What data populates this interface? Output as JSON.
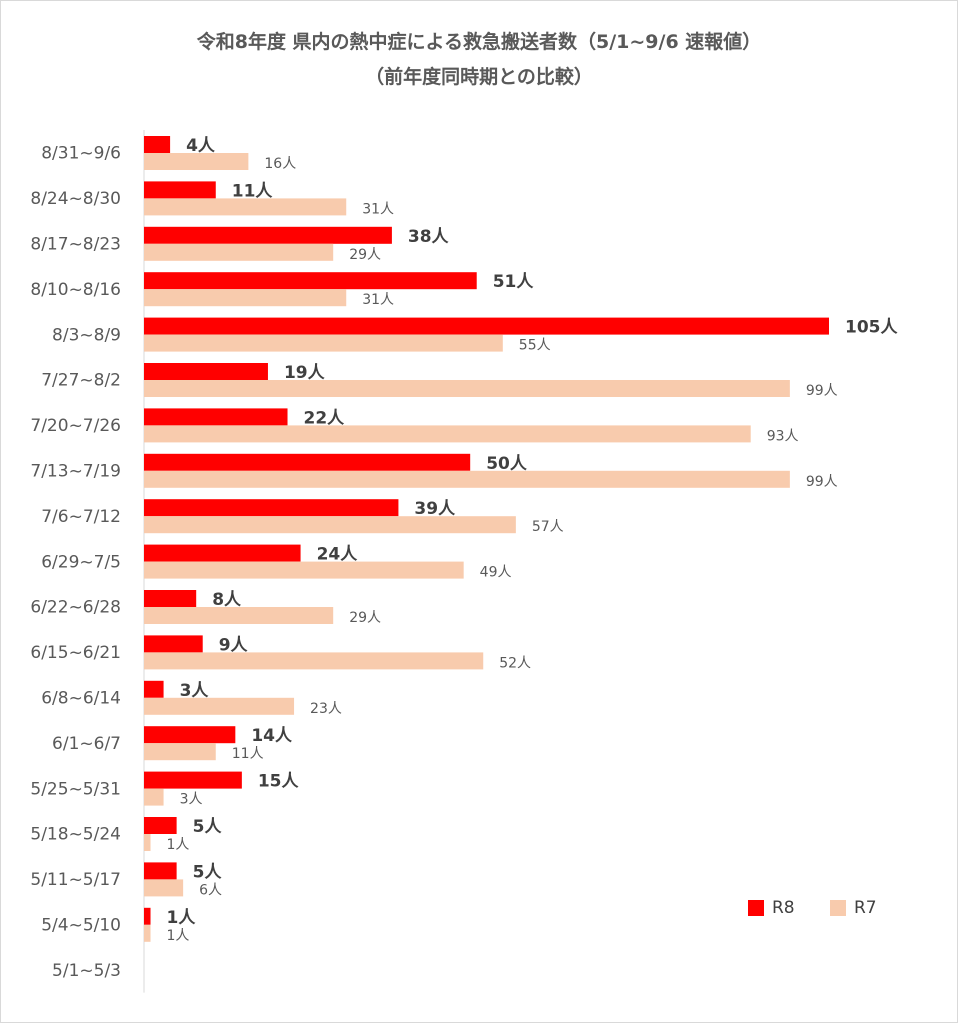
{
  "chart_data": {
    "type": "bar",
    "orientation": "horizontal",
    "title": "令和8年度 県内の熱中症による救急搬送者数（5/1~9/6 速報値）",
    "subtitle": "（前年度同時期との比較）",
    "categories": [
      "8/31~9/6",
      "8/24~8/30",
      "8/17~8/23",
      "8/10~8/16",
      "8/3~8/9",
      "7/27~8/2",
      "7/20~7/26",
      "7/13~7/19",
      "7/6~7/12",
      "6/29~7/5",
      "6/22~6/28",
      "6/15~6/21",
      "6/8~6/14",
      "6/1~6/7",
      "5/25~5/31",
      "5/18~5/24",
      "5/11~5/17",
      "5/4~5/10",
      "5/1~5/3"
    ],
    "series": [
      {
        "name": "R8",
        "color": "#ff0000",
        "values": [
          4,
          11,
          38,
          51,
          105,
          19,
          22,
          50,
          39,
          24,
          8,
          9,
          3,
          14,
          15,
          5,
          5,
          1,
          null
        ],
        "labels": [
          "4人",
          "11人",
          "38人",
          "51人",
          "105人",
          "19人",
          "22人",
          "50人",
          "39人",
          "24人",
          "8人",
          "9人",
          "3人",
          "14人",
          "15人",
          "5人",
          "5人",
          "1人",
          ""
        ]
      },
      {
        "name": "R7",
        "color": "#f8cbad",
        "values": [
          16,
          31,
          29,
          31,
          55,
          99,
          93,
          99,
          57,
          49,
          29,
          52,
          23,
          11,
          3,
          1,
          6,
          1,
          null
        ],
        "labels": [
          "16人",
          "31人",
          "29人",
          "31人",
          "55人",
          "99人",
          "93人",
          "99人",
          "57人",
          "49人",
          "29人",
          "52人",
          "23人",
          "11人",
          "3人",
          "1人",
          "6人",
          "1人",
          ""
        ]
      }
    ],
    "xlim": [
      0,
      105
    ],
    "grid": false,
    "legend_position": "bottom-right"
  }
}
